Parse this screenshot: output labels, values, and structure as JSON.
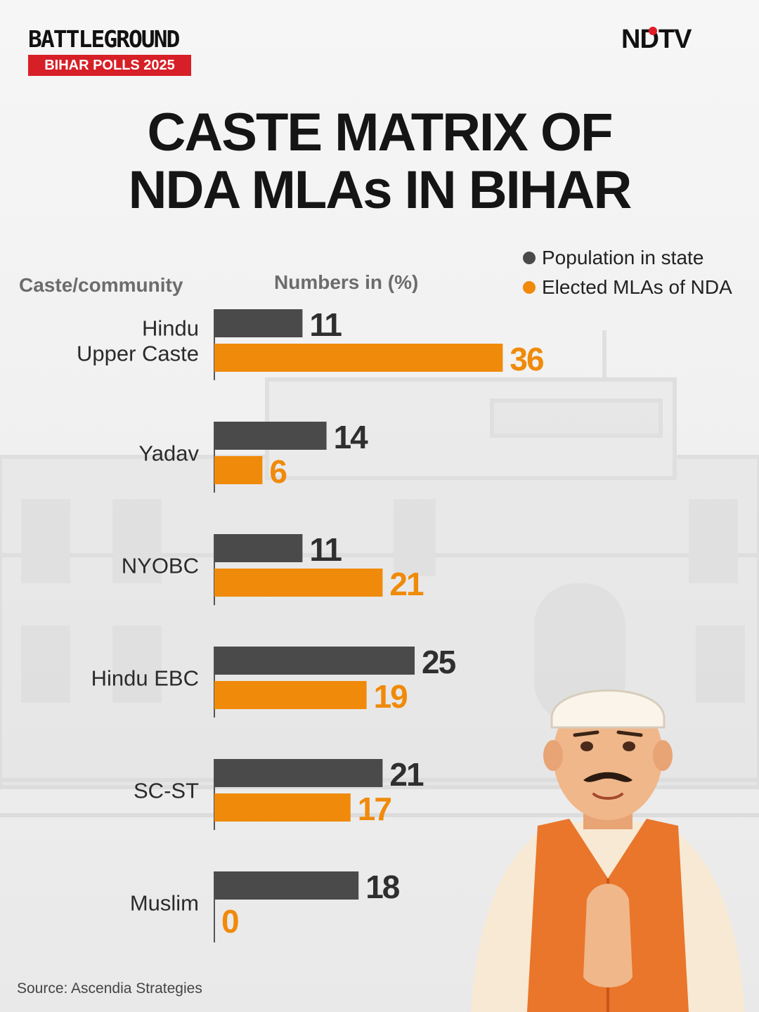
{
  "brand": {
    "title": "BATTLEGROUND",
    "subtitle": "BIHAR POLLS 2025",
    "accent": "#d71f27"
  },
  "logo": {
    "text": "NDTV",
    "dot_color": "#e21d27"
  },
  "headline": {
    "line1": "CASTE MATRIX OF",
    "line2": "NDA MLAs IN BIHAR"
  },
  "headers": {
    "category": "Caste/community",
    "values": "Numbers in (%)"
  },
  "source": "Source: Ascendia Strategies",
  "chart_data": {
    "type": "bar",
    "orientation": "horizontal",
    "title": "CASTE MATRIX OF NDA MLAs IN BIHAR",
    "xlabel": "Numbers in (%)",
    "ylabel": "Caste/community",
    "xlim": [
      0,
      36
    ],
    "grid": false,
    "legend": "top-right",
    "categories": [
      "Hindu Upper Caste",
      "Yadav",
      "NYOBC",
      "Hindu EBC",
      "SC-ST",
      "Muslim"
    ],
    "category_lines": [
      [
        "Hindu",
        "Upper Caste"
      ],
      [
        "Yadav"
      ],
      [
        "NYOBC"
      ],
      [
        "Hindu EBC"
      ],
      [
        "SC-ST"
      ],
      [
        "Muslim"
      ]
    ],
    "series": [
      {
        "name": "Population in state",
        "color": "#4a4a4a",
        "label_color": "#2f2f2f",
        "values": [
          11,
          14,
          11,
          25,
          21,
          18
        ]
      },
      {
        "name": "Elected MLAs of NDA",
        "color": "#f08a0a",
        "label_color": "#f08a0a",
        "values": [
          36,
          6,
          21,
          19,
          17,
          0
        ]
      }
    ]
  }
}
